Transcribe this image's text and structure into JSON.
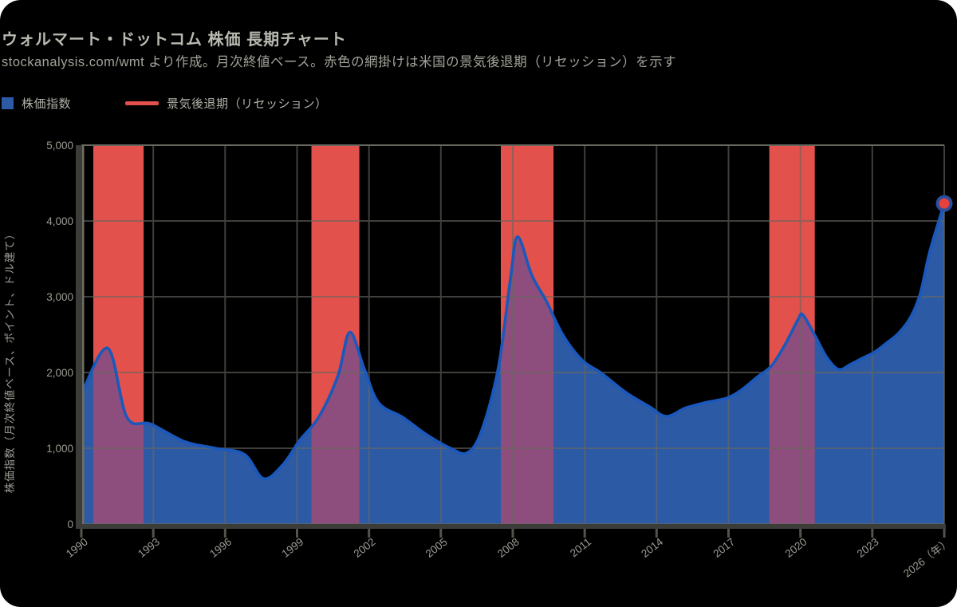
{
  "header": {
    "title": "ウォルマート・ドットコム 株価 長期チャート",
    "subtitle": "stockanalysis.com/wmt より作成。月次終値ベース。赤色の網掛けは米国の景気後退期（リセッション）を示す"
  },
  "legend": {
    "series_label": "株価指数",
    "band_label": "景気後退期（リセッション）"
  },
  "colors": {
    "card_bg": "#000000",
    "title": "#b9b9b1",
    "subtitle": "#a3a39b",
    "tick_text": "#9c9c94",
    "grid": "#67675f",
    "spine": "#3c3c38",
    "spine_edge": "#6e6e64",
    "tick_mark": "#54544e",
    "area": "#2d5aa5",
    "line": "#1a58bb",
    "band": "#e2514b",
    "band_over_area": "#8d4e7d",
    "marker_ring": "#2a4f9e",
    "marker_fill": "#e6413c"
  },
  "chart_data": {
    "type": "area",
    "title": "ウォルマート・ドットコム 株価 長期チャート",
    "series_name": "株価指数",
    "xlabel": "",
    "ylabel": "株価指数（月次終値ベース、ポイント、ドル建て）",
    "x": [
      1990.0,
      1991.1,
      1991.9,
      1992.9,
      1994.3,
      1995.6,
      1996.8,
      1997.6,
      1998.4,
      1999.1,
      1999.9,
      2000.7,
      2001.2,
      2001.8,
      2002.4,
      2003.4,
      2004.4,
      2005.4,
      2006.1,
      2006.7,
      2007.4,
      2007.9,
      2008.2,
      2008.8,
      2009.4,
      2010.1,
      2010.9,
      2011.7,
      2012.7,
      2013.7,
      2014.4,
      2015.2,
      2016.0,
      2016.9,
      2017.5,
      2018.2,
      2018.8,
      2019.4,
      2019.9,
      2020.1,
      2020.6,
      2021.1,
      2021.6,
      2022.1,
      2022.6,
      2023.1,
      2023.6,
      2024.1,
      2024.6,
      2025.0,
      2025.4,
      2026.0
    ],
    "values": [
      1710,
      2320,
      1410,
      1320,
      1090,
      1000,
      920,
      600,
      780,
      1100,
      1410,
      1950,
      2530,
      2050,
      1600,
      1410,
      1180,
      1000,
      940,
      1230,
      2070,
      3230,
      3790,
      3280,
      2940,
      2490,
      2160,
      1990,
      1740,
      1550,
      1420,
      1530,
      1600,
      1660,
      1760,
      1940,
      2090,
      2390,
      2700,
      2760,
      2490,
      2200,
      2040,
      2110,
      2190,
      2270,
      2390,
      2520,
      2730,
      3040,
      3600,
      4230
    ],
    "xlim": [
      1990,
      2026
    ],
    "ylim": [
      0,
      5000
    ],
    "x_ticks": [
      1990,
      1993,
      1996,
      1999,
      2002,
      2005,
      2008,
      2011,
      2014,
      2017,
      2020,
      2023,
      2026
    ],
    "x_tick_labels": [
      "1990",
      "1993",
      "1996",
      "1999",
      "2002",
      "2005",
      "2008",
      "2011",
      "2014",
      "2017",
      "2020",
      "2023",
      "2026（年）"
    ],
    "y_ticks": [
      0,
      1000,
      2000,
      3000,
      4000,
      5000
    ],
    "y_tick_labels": [
      "0",
      "1,000",
      "2,000",
      "3,000",
      "4,000",
      "5,000"
    ],
    "recession_bands": [
      [
        1990.5,
        1992.6
      ],
      [
        1999.6,
        2001.6
      ],
      [
        2007.5,
        2009.7
      ],
      [
        2018.7,
        2020.6
      ]
    ],
    "last_point": {
      "x": 2026.0,
      "value": 4230,
      "marker": "red-circle-blue-ring"
    },
    "grid": true,
    "legend_position": "top-left"
  }
}
